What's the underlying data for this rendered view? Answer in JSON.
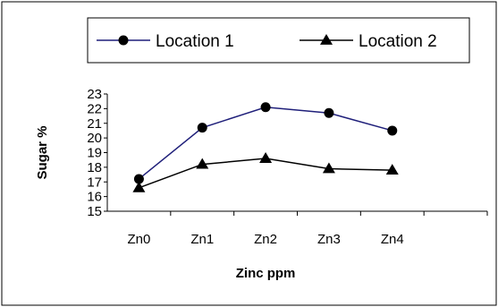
{
  "chart_data": {
    "type": "line",
    "categories": [
      "Zn0",
      "Zn1",
      "Zn2",
      "Zn3",
      "Zn4"
    ],
    "series": [
      {
        "name": "Location 1",
        "values": [
          17.2,
          20.7,
          22.1,
          21.7,
          20.5
        ],
        "color": "#1f1f7a",
        "marker": "circle"
      },
      {
        "name": "Location 2",
        "values": [
          16.6,
          18.2,
          18.6,
          17.9,
          17.8
        ],
        "color": "#000000",
        "marker": "triangle"
      }
    ],
    "xlabel": "Zinc ppm",
    "ylabel": "Sugar %",
    "ylim": [
      15,
      23
    ],
    "yticks": [
      "15",
      "16",
      "17",
      "18",
      "19",
      "20",
      "21",
      "22",
      "23"
    ],
    "grid": false,
    "legend_position": "top"
  }
}
